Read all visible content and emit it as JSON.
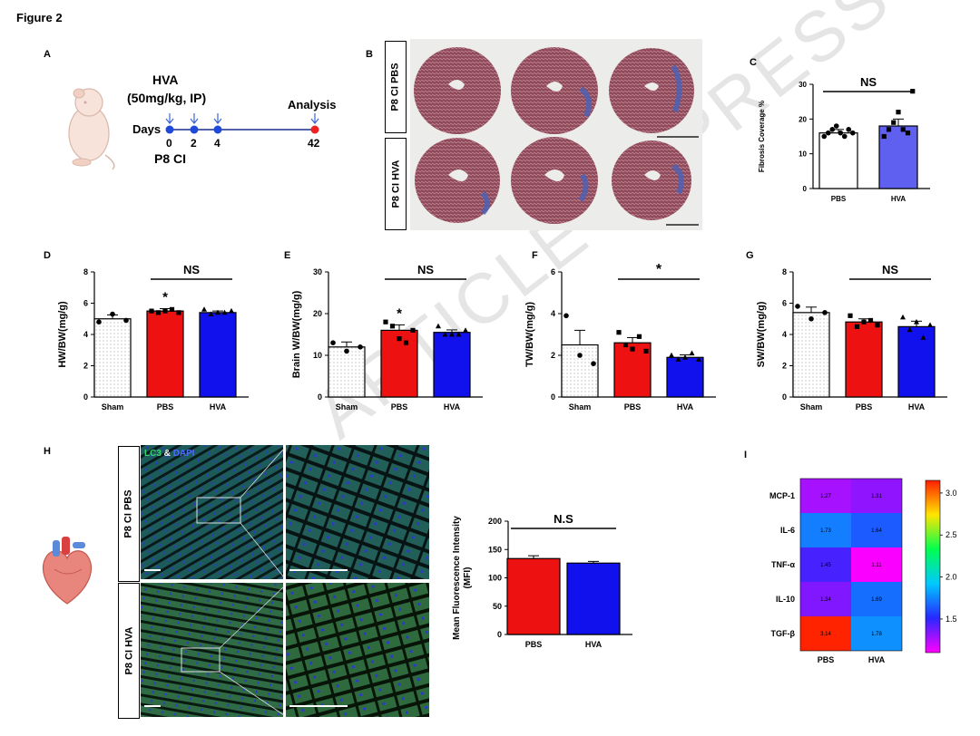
{
  "figure_title": "Figure 2",
  "panels": {
    "A": {
      "label": "A",
      "drug_line1": "HVA",
      "drug_line2": "(50mg/kg, IP)",
      "days_label": "Days",
      "analysis_label": "Analysis",
      "model_label": "P8 CI",
      "day_ticks": [
        "0",
        "2",
        "4",
        "42"
      ]
    },
    "B": {
      "label": "B",
      "row_labels": [
        "P8 CI PBS",
        "P8 CI HVA"
      ]
    },
    "C": {
      "label": "C"
    },
    "D": {
      "label": "D"
    },
    "E": {
      "label": "E"
    },
    "F": {
      "label": "F"
    },
    "G": {
      "label": "G"
    },
    "H": {
      "label": "H",
      "row_labels": [
        "P8 CI PBS",
        "P8 CI HVA"
      ],
      "stain_lc3": "LC3",
      "stain_amp": " & ",
      "stain_dapi": "DAPI"
    },
    "I": {
      "label": "I"
    }
  },
  "colors": {
    "sham": "#ffffff",
    "pbs": "#ee1111",
    "hva": "#1111ee",
    "bar_c_hva": "#6060f0"
  },
  "watermark": "ARTICLE IN PRESS",
  "chart_data": [
    {
      "panel": "C",
      "type": "bar",
      "ylabel": "Fibrosis Coverage %",
      "categories": [
        "PBS",
        "HVA"
      ],
      "values": [
        16,
        18
      ],
      "errors": [
        1,
        2
      ],
      "points": [
        [
          15,
          16,
          17,
          18,
          16,
          15,
          17,
          16
        ],
        [
          15,
          17,
          19,
          22,
          17,
          16,
          28
        ]
      ],
      "ylim": [
        0,
        30
      ],
      "yticks": [
        0,
        10,
        20,
        30
      ],
      "significance": {
        "from": 0,
        "to": 1,
        "text": "NS"
      },
      "star_over": []
    },
    {
      "panel": "D",
      "type": "bar",
      "ylabel": "HW/BW(mg/g)",
      "categories": [
        "Sham",
        "PBS",
        "HVA"
      ],
      "values": [
        5.0,
        5.5,
        5.4
      ],
      "errors": [
        0.25,
        0.15,
        0.1
      ],
      "points": [
        [
          4.8,
          5.3,
          4.9
        ],
        [
          5.5,
          5.4,
          5.5,
          5.6,
          5.4
        ],
        [
          5.6,
          5.3,
          5.4,
          5.4,
          5.5
        ]
      ],
      "ylim": [
        0,
        8
      ],
      "yticks": [
        0,
        2,
        4,
        6,
        8
      ],
      "significance": {
        "from": 1,
        "to": 2,
        "text": "NS"
      },
      "star_over": [
        1
      ]
    },
    {
      "panel": "E",
      "type": "bar",
      "ylabel": "Brain W/BW(mg/g)",
      "categories": [
        "Sham",
        "PBS",
        "HVA"
      ],
      "values": [
        12,
        16,
        15.5
      ],
      "errors": [
        1.2,
        1.3,
        0.6
      ],
      "points": [
        [
          13,
          11,
          12
        ],
        [
          18,
          17,
          14,
          13,
          16
        ],
        [
          17,
          15,
          15,
          15,
          16
        ]
      ],
      "ylim": [
        0,
        30
      ],
      "yticks": [
        0,
        10,
        20,
        30
      ],
      "significance": {
        "from": 1,
        "to": 2,
        "text": "NS"
      },
      "star_over": [
        1
      ]
    },
    {
      "panel": "F",
      "type": "bar",
      "ylabel": "TW/BW(mg/g)",
      "categories": [
        "Sham",
        "PBS",
        "HVA"
      ],
      "values": [
        2.5,
        2.6,
        1.9
      ],
      "errors": [
        0.7,
        0.25,
        0.12
      ],
      "points": [
        [
          3.9,
          2.0,
          1.6
        ],
        [
          3.1,
          2.5,
          2.3,
          2.9,
          2.2
        ],
        [
          2.0,
          1.8,
          1.9,
          2.1,
          1.8
        ]
      ],
      "ylim": [
        0,
        6
      ],
      "yticks": [
        0,
        2,
        4,
        6
      ],
      "significance": {
        "from": 1,
        "to": 2,
        "text": "*"
      },
      "star_over": []
    },
    {
      "panel": "G",
      "type": "bar",
      "ylabel": "SW/BW(mg/g)",
      "categories": [
        "Sham",
        "PBS",
        "HVA"
      ],
      "values": [
        5.4,
        4.8,
        4.5
      ],
      "errors": [
        0.35,
        0.2,
        0.35
      ],
      "points": [
        [
          5.8,
          5.0,
          5.4
        ],
        [
          5.2,
          4.5,
          4.8,
          4.9,
          4.6
        ],
        [
          5.1,
          4.3,
          4.8,
          3.8,
          4.6
        ]
      ],
      "ylim": [
        0,
        8
      ],
      "yticks": [
        0,
        2,
        4,
        6,
        8
      ],
      "significance": {
        "from": 1,
        "to": 2,
        "text": "NS"
      },
      "star_over": []
    },
    {
      "panel": "H",
      "type": "bar",
      "ylabel": "Mean Fluorescence Intensity (MFI)",
      "categories": [
        "PBS",
        "HVA"
      ],
      "values": [
        134,
        126
      ],
      "errors": [
        5,
        3
      ],
      "points": [],
      "ylim": [
        0,
        200
      ],
      "yticks": [
        0,
        50,
        100,
        150,
        200
      ],
      "significance": {
        "from": 0,
        "to": 1,
        "text": "N.S"
      },
      "star_over": []
    },
    {
      "panel": "I",
      "type": "heatmap",
      "rows": [
        "MCP-1",
        "IL-6",
        "TNF-α",
        "IL-10",
        "TGF-β"
      ],
      "columns": [
        "PBS",
        "HVA"
      ],
      "values": [
        [
          1.27,
          1.31
        ],
        [
          1.73,
          1.64
        ],
        [
          1.45,
          1.11
        ],
        [
          1.34,
          1.69
        ],
        [
          3.14,
          1.78
        ]
      ],
      "colorbar_ticks": [
        "3.0",
        "2.5",
        "2.0",
        "1.5"
      ],
      "colorbar_range": [
        1.1,
        3.15
      ]
    }
  ]
}
